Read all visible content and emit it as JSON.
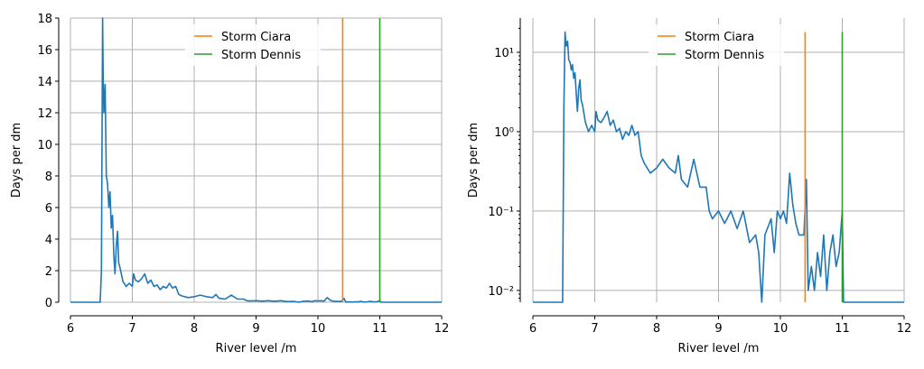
{
  "chart_data": [
    {
      "type": "line",
      "title": "",
      "xlabel": "River level /m",
      "ylabel": "Days per dm",
      "yscale": "linear",
      "xlim": [
        6,
        12
      ],
      "ylim": [
        0,
        18
      ],
      "xticks": [
        6,
        7,
        8,
        9,
        10,
        11,
        12
      ],
      "xtick_labels": [
        "6",
        "7",
        "8",
        "9",
        "10",
        "11",
        "12"
      ],
      "yticks": [
        0,
        2,
        4,
        6,
        8,
        10,
        12,
        14,
        16,
        18
      ],
      "ytick_labels": [
        "0",
        "2",
        "4",
        "6",
        "8",
        "10",
        "12",
        "14",
        "16",
        "18"
      ],
      "grid": true,
      "legend": {
        "placement": "top-center",
        "entries": [
          "Storm Ciara",
          "Storm Dennis"
        ]
      },
      "vlines": [
        {
          "name": "Storm Ciara",
          "x": 10.4,
          "color": "#ff7f0e"
        },
        {
          "name": "Storm Dennis",
          "x": 11.0,
          "color": "#2ca02c"
        }
      ],
      "series_color": "#1f77b4"
    },
    {
      "type": "line",
      "title": "",
      "xlabel": "River level /m",
      "ylabel": "Days per dm",
      "yscale": "log",
      "xlim": [
        6,
        12
      ],
      "ylim": [
        0.0071,
        27
      ],
      "vline_ylim": [
        0.0071,
        18
      ],
      "xticks": [
        6,
        7,
        8,
        9,
        10,
        11,
        12
      ],
      "xtick_labels": [
        "6",
        "7",
        "8",
        "9",
        "10",
        "11",
        "12"
      ],
      "yticks": [
        10,
        1,
        0.1,
        0.01
      ],
      "ytick_labels": [
        "10¹",
        "10⁰",
        "10⁻¹",
        "10⁻²"
      ],
      "grid": true,
      "legend": {
        "placement": "top-center",
        "entries": [
          "Storm Ciara",
          "Storm Dennis"
        ]
      },
      "vlines": [
        {
          "name": "Storm Ciara",
          "x": 10.4,
          "color": "#ff7f0e"
        },
        {
          "name": "Storm Dennis",
          "x": 11.0,
          "color": "#2ca02c"
        }
      ],
      "series_color": "#1f77b4"
    }
  ],
  "series": {
    "name": "Days per dm",
    "x": [
      6.0,
      6.48,
      6.5,
      6.52,
      6.53,
      6.54,
      6.56,
      6.58,
      6.6,
      6.62,
      6.64,
      6.66,
      6.68,
      6.7,
      6.72,
      6.74,
      6.76,
      6.78,
      6.8,
      6.85,
      6.9,
      6.95,
      7.0,
      7.02,
      7.05,
      7.1,
      7.15,
      7.2,
      7.25,
      7.3,
      7.35,
      7.4,
      7.45,
      7.5,
      7.55,
      7.6,
      7.65,
      7.7,
      7.75,
      7.8,
      7.9,
      8.0,
      8.1,
      8.2,
      8.3,
      8.35,
      8.4,
      8.5,
      8.6,
      8.7,
      8.8,
      8.85,
      8.9,
      9.0,
      9.1,
      9.2,
      9.3,
      9.4,
      9.5,
      9.6,
      9.65,
      9.7,
      9.75,
      9.85,
      9.9,
      9.95,
      10.0,
      10.05,
      10.1,
      10.15,
      10.2,
      10.25,
      10.3,
      10.38,
      10.42,
      10.45,
      10.5,
      10.55,
      10.6,
      10.65,
      10.7,
      10.75,
      10.8,
      10.85,
      10.9,
      10.95,
      11.0,
      11.02,
      12.0
    ],
    "y": [
      0,
      0,
      2,
      18,
      14,
      12,
      13.8,
      8,
      7.5,
      6,
      7,
      4.7,
      5.5,
      3,
      1.8,
      3.5,
      4.5,
      2.5,
      2.2,
      1.3,
      1.0,
      1.2,
      1.0,
      1.8,
      1.4,
      1.3,
      1.5,
      1.8,
      1.2,
      1.4,
      1.0,
      1.1,
      0.8,
      1.0,
      0.9,
      1.2,
      0.9,
      1.0,
      0.5,
      0.4,
      0.3,
      0.35,
      0.45,
      0.35,
      0.3,
      0.5,
      0.25,
      0.2,
      0.45,
      0.2,
      0.2,
      0.1,
      0.08,
      0.1,
      0.07,
      0.1,
      0.06,
      0.1,
      0.04,
      0.05,
      0.03,
      0.007,
      0.05,
      0.08,
      0.03,
      0.1,
      0.08,
      0.1,
      0.07,
      0.3,
      0.12,
      0.07,
      0.05,
      0.05,
      0.25,
      0.01,
      0.02,
      0.01,
      0.03,
      0.015,
      0.05,
      0.01,
      0.03,
      0.05,
      0.02,
      0.03,
      0.1,
      0,
      0
    ]
  }
}
